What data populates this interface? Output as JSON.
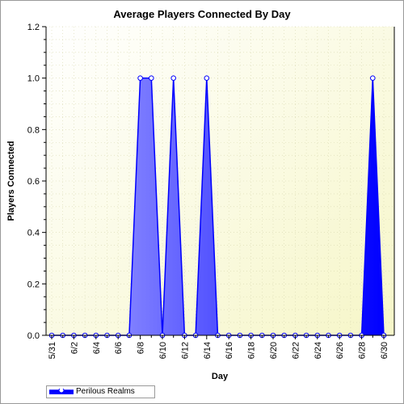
{
  "chart_data": {
    "type": "area",
    "title": "Average Players Connected By Day",
    "xlabel": "Day",
    "ylabel": "Players Connected",
    "ylim": [
      0,
      1.2
    ],
    "yticks": [
      "0.0",
      "0.2",
      "0.4",
      "0.6",
      "0.8",
      "1.0",
      "1.2"
    ],
    "xtick_labels": [
      "5/31",
      "6/2",
      "6/4",
      "6/6",
      "6/8",
      "6/10",
      "6/12",
      "6/14",
      "6/16",
      "6/18",
      "6/20",
      "6/22",
      "6/24",
      "6/26",
      "6/28",
      "6/30"
    ],
    "grid": true,
    "legend_position": "bottom-left",
    "categories": [
      "5/31",
      "6/1",
      "6/2",
      "6/3",
      "6/4",
      "6/5",
      "6/6",
      "6/7",
      "6/8",
      "6/9",
      "6/10",
      "6/11",
      "6/12",
      "6/13",
      "6/14",
      "6/15",
      "6/16",
      "6/17",
      "6/18",
      "6/19",
      "6/20",
      "6/21",
      "6/22",
      "6/23",
      "6/24",
      "6/25",
      "6/26",
      "6/27",
      "6/28",
      "6/29",
      "6/30"
    ],
    "series": [
      {
        "name": "Perilous Realms",
        "color": "#0000ff",
        "values": [
          0,
          0,
          0,
          0,
          0,
          0,
          0,
          0,
          1,
          1,
          0,
          1,
          0,
          0,
          1,
          0,
          0,
          0,
          0,
          0,
          0,
          0,
          0,
          0,
          0,
          0,
          0,
          0,
          0,
          1,
          0
        ]
      }
    ]
  },
  "colors": {
    "plot_bg_top": "#fffff0",
    "plot_bg_bottom": "#f8f8d0",
    "series": "#0000ff",
    "axis": "#000000",
    "grid": "#c8c8a8"
  }
}
